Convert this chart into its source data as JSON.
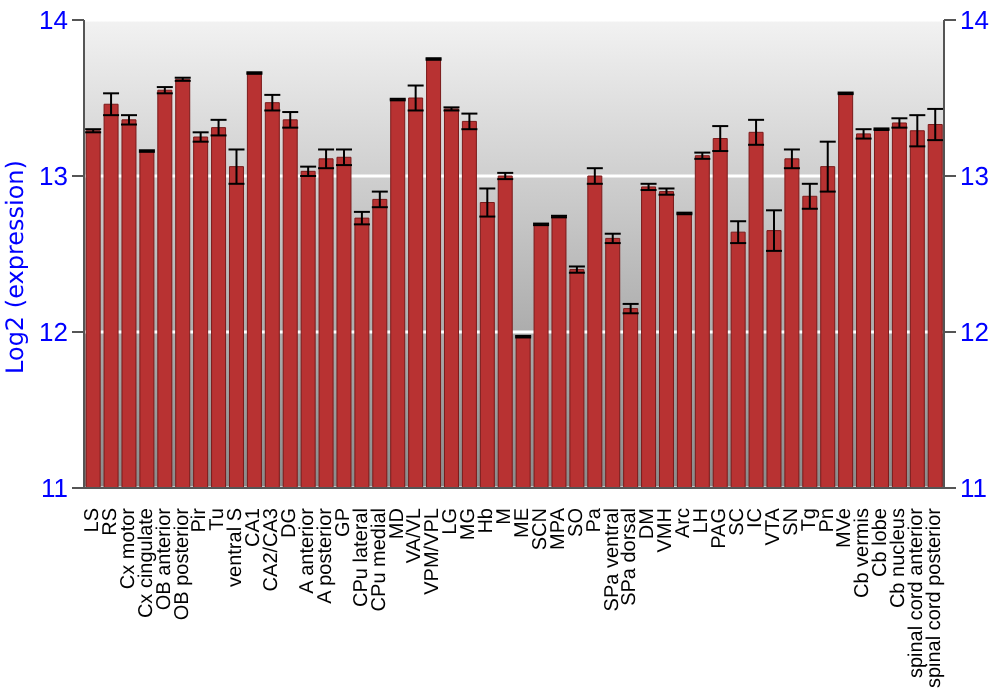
{
  "chart_data": {
    "type": "bar",
    "ylabel": "Log2 (expression)",
    "categories": [
      "LS",
      "RS",
      "Cx motor",
      "Cx cingulate",
      "OB anterior",
      "OB posterior",
      "Pir",
      "Tu",
      "ventral S",
      "CA1",
      "CA2/CA3",
      "DG",
      "A anterior",
      "A posterior",
      "GP",
      "CPu lateral",
      "CPu medial",
      "MD",
      "VA/VL",
      "VPM/VPL",
      "LG",
      "MG",
      "Hb",
      "M",
      "ME",
      "SCN",
      "MPA",
      "SO",
      "Pa",
      "SPa ventral",
      "SPa dorsal",
      "DM",
      "VMH",
      "Arc",
      "LH",
      "PAG",
      "SC",
      "IC",
      "VTA",
      "SN",
      "Tg",
      "Pn",
      "MVe",
      "Cb vermis",
      "Cb lobe",
      "Cb nucleus",
      "spinal cord anterior",
      "spinal cord posterior"
    ],
    "series": [
      {
        "color": "#b83232",
        "values": [
          13.29,
          13.46,
          13.36,
          13.16,
          13.55,
          13.62,
          13.25,
          13.31,
          13.06,
          13.66,
          13.47,
          13.36,
          13.03,
          13.11,
          13.12,
          12.73,
          12.85,
          13.49,
          13.5,
          13.75,
          13.43,
          13.35,
          12.83,
          13.0,
          11.97,
          12.69,
          12.74,
          12.4,
          13.0,
          12.6,
          12.15,
          12.93,
          12.9,
          12.76,
          13.13,
          13.24,
          12.64,
          13.28,
          12.65,
          13.11,
          12.87,
          13.06,
          13.53,
          13.27,
          13.3,
          13.34,
          13.29,
          13.33
        ],
        "errors": [
          0.01,
          0.07,
          0.03,
          0.005,
          0.02,
          0.01,
          0.03,
          0.05,
          0.11,
          0.005,
          0.05,
          0.05,
          0.03,
          0.06,
          0.05,
          0.04,
          0.05,
          0.005,
          0.08,
          0.005,
          0.01,
          0.05,
          0.09,
          0.02,
          0.005,
          0.005,
          0.005,
          0.02,
          0.05,
          0.03,
          0.03,
          0.02,
          0.02,
          0.005,
          0.02,
          0.08,
          0.07,
          0.08,
          0.13,
          0.06,
          0.08,
          0.16,
          0.005,
          0.03,
          0.005,
          0.03,
          0.1,
          0.1
        ]
      }
    ],
    "ylim": [
      11,
      14
    ],
    "yticks": [
      11,
      12,
      13,
      14
    ],
    "y2lim": [
      11,
      14
    ],
    "y2ticks": [
      11,
      12,
      13,
      14
    ],
    "grid": "y"
  }
}
